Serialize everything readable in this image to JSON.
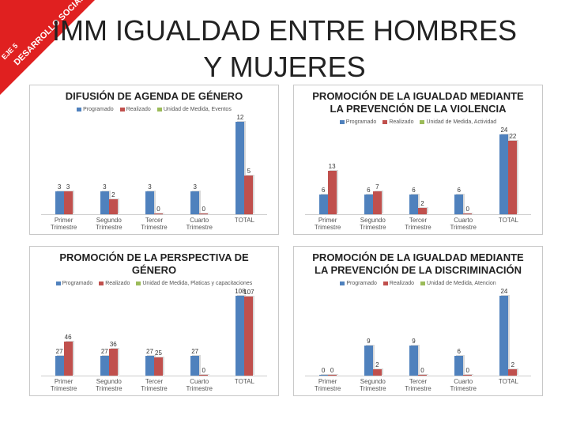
{
  "slide": {
    "title_lines": [
      "IMM IGUALDAD ENTRE HOMBRES",
      "Y MUJERES"
    ],
    "ribbon": [
      "EJE 5",
      "DESARROLLO SOCIAL"
    ]
  },
  "chart_data": [
    {
      "type": "bar",
      "title": "DIFUSIÓN DE AGENDA DE GÉNERO",
      "categories": [
        "Primer Trimestre",
        "Segundo Trimestre",
        "Tercer Trimestre",
        "Cuarto Trimestre",
        "TOTAL"
      ],
      "series": [
        {
          "name": "Programado",
          "color": "#4f81bd",
          "values": [
            3,
            3,
            3,
            3,
            12
          ]
        },
        {
          "name": "Realizado",
          "color": "#c0504d",
          "values": [
            3,
            2,
            0,
            0,
            5
          ]
        },
        {
          "name": "Unidad de Medida, Eventos",
          "color": "#9bbb59",
          "values": [
            null,
            null,
            null,
            null,
            null
          ]
        }
      ]
    },
    {
      "type": "bar",
      "title": "PROMOCIÓN DE LA IGUALDAD MEDIANTE LA PREVENCIÓN DE LA VIOLENCIA",
      "categories": [
        "Primer Trimestre",
        "Segundo Trimestre",
        "Tercer Trimestre",
        "Cuarto Trimestre",
        "TOTAL"
      ],
      "series": [
        {
          "name": "Programado",
          "color": "#4f81bd",
          "values": [
            6,
            6,
            6,
            6,
            24
          ]
        },
        {
          "name": "Realizado",
          "color": "#c0504d",
          "values": [
            13,
            7,
            2,
            0,
            22
          ]
        },
        {
          "name": "Unidad de Medida, Actividad",
          "color": "#9bbb59",
          "values": [
            null,
            null,
            null,
            null,
            null
          ]
        }
      ]
    },
    {
      "type": "bar",
      "title": "PROMOCIÓN DE LA PERSPECTIVA DE GÉNERO",
      "categories": [
        "Primer Trimestre",
        "Segundo Trimestre",
        "Tercer Trimestre",
        "Cuarto Trimestre",
        "TOTAL"
      ],
      "series": [
        {
          "name": "Programado",
          "color": "#4f81bd",
          "values": [
            27,
            27,
            27,
            27,
            108
          ]
        },
        {
          "name": "Realizado",
          "color": "#c0504d",
          "values": [
            46,
            36,
            25,
            0,
            107
          ]
        },
        {
          "name": "Unidad de Medida, Platicas y capacitaciones",
          "color": "#9bbb59",
          "values": [
            null,
            null,
            null,
            null,
            null
          ]
        }
      ]
    },
    {
      "type": "bar",
      "title": "PROMOCIÓN DE LA IGUALDAD MEDIANTE LA PREVENCIÓN DE LA DISCRIMINACIÓN",
      "categories": [
        "Primer Trimestre",
        "Segundo Trimestre",
        "Tercer Trimestre",
        "Cuarto Trimestre",
        "TOTAL"
      ],
      "series": [
        {
          "name": "Programado",
          "color": "#4f81bd",
          "values": [
            0,
            9,
            9,
            6,
            24
          ]
        },
        {
          "name": "Realizado",
          "color": "#c0504d",
          "values": [
            0,
            2,
            0,
            0,
            2
          ]
        },
        {
          "name": "Unidad de Medida, Atencion",
          "color": "#9bbb59",
          "values": [
            null,
            null,
            null,
            null,
            null
          ]
        }
      ]
    }
  ]
}
